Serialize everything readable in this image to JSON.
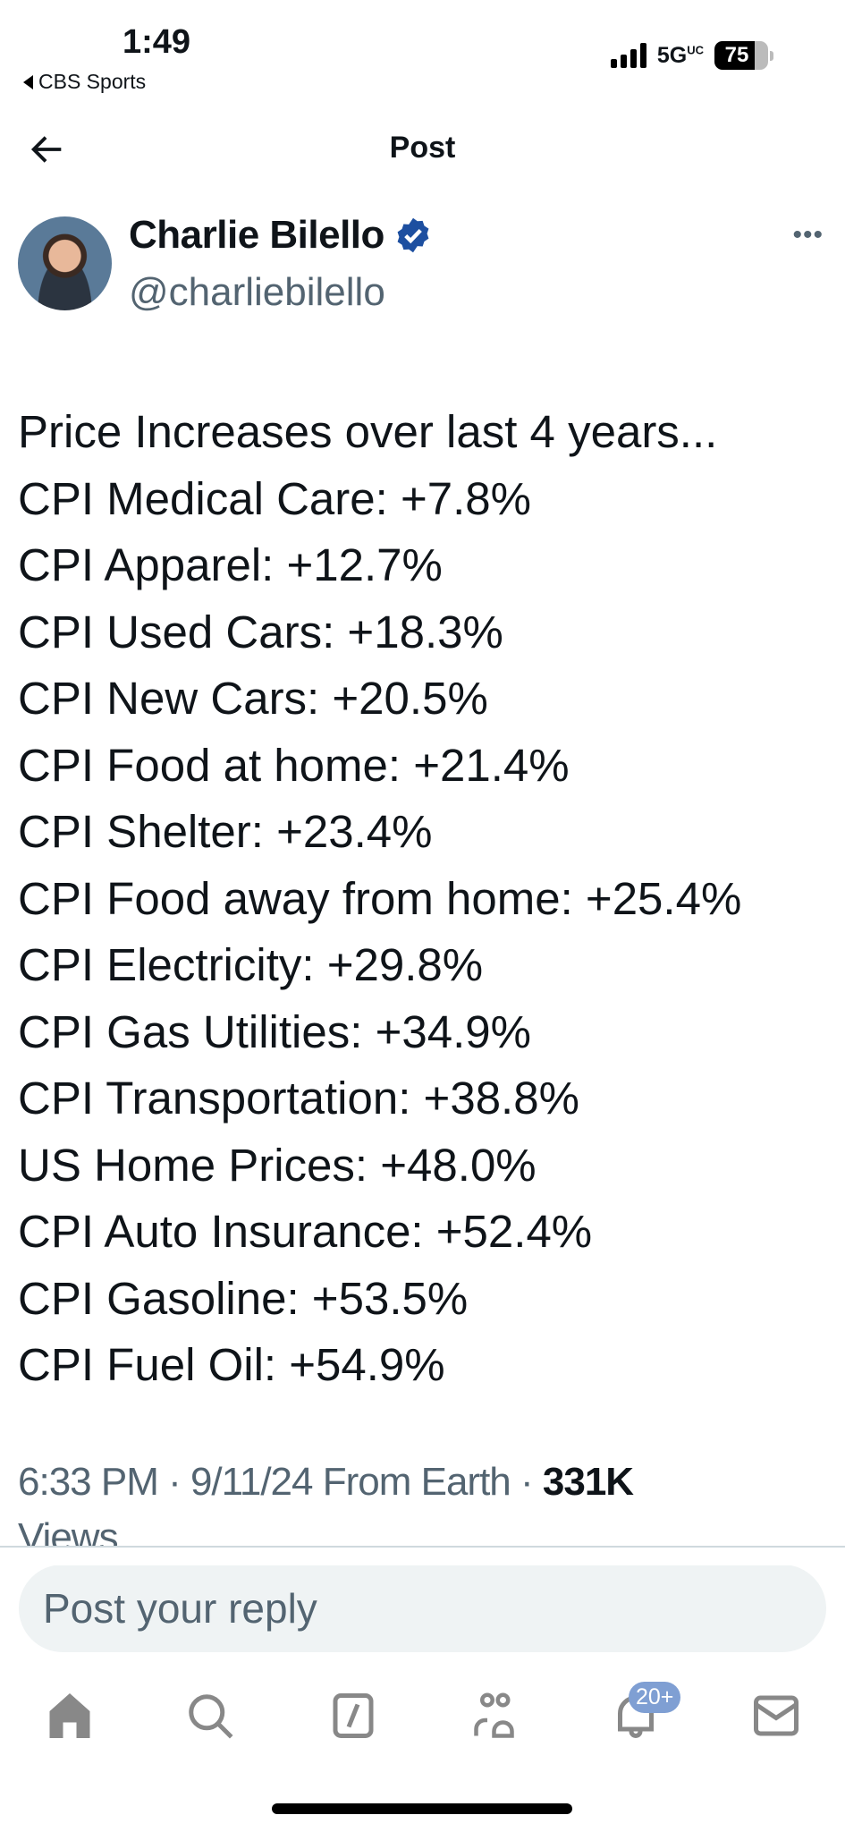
{
  "status_bar": {
    "time": "1:49",
    "back_app": "CBS Sports",
    "network": "5G UC",
    "battery": "75"
  },
  "header": {
    "title": "Post"
  },
  "author": {
    "name": "Charlie Bilello",
    "handle": "@charliebilello",
    "verified": true
  },
  "post": {
    "lines": [
      "Price Increases over last 4 years...",
      "CPI Medical Care: +7.8%",
      "CPI Apparel: +12.7%",
      "CPI Used Cars: +18.3%",
      "CPI New Cars: +20.5%",
      "CPI Food at home: +21.4%",
      "CPI Shelter: +23.4%",
      "CPI Food away from home: +25.4%",
      "CPI Electricity: +29.8%",
      "CPI Gas Utilities: +34.9%",
      "CPI Transportation: +38.8%",
      "US Home Prices: +48.0%",
      "CPI Auto Insurance: +52.4%",
      "CPI Gasoline: +53.5%",
      "CPI Fuel Oil: +54.9%"
    ],
    "timestamp": "6:33 PM · 9/11/24 From Earth · ",
    "views_count": "331K",
    "views_label": "Views"
  },
  "reply": {
    "placeholder": "Post your reply"
  },
  "nav": {
    "notifications_badge": "20+",
    "icons": [
      "home-icon",
      "search-icon",
      "grok-icon",
      "communities-icon",
      "notifications-icon",
      "messages-icon"
    ]
  },
  "colors": {
    "verified": "#1d4fa0",
    "badge": "#7f9fd3",
    "nav_icon": "#888888"
  }
}
